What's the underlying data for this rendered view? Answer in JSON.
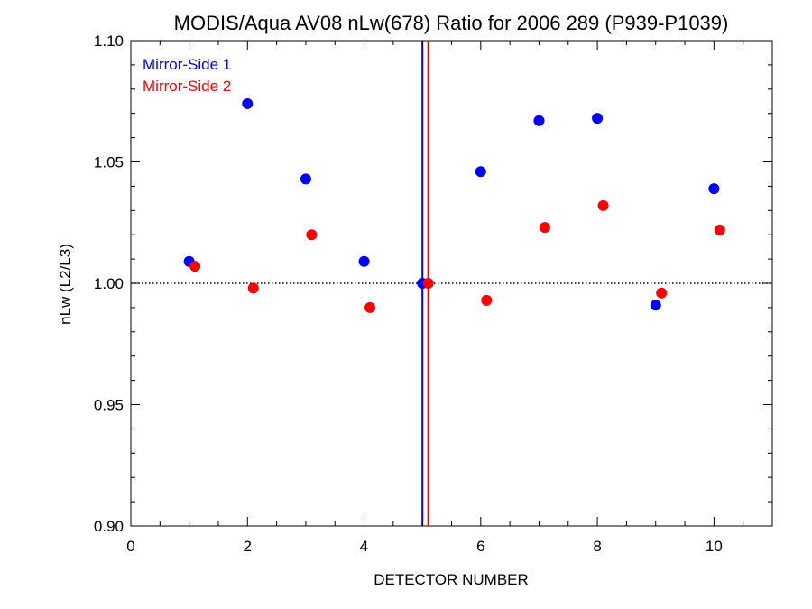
{
  "chart_data": {
    "type": "scatter",
    "title": "MODIS/Aqua AV08 nLw(678) Ratio for 2006 289 (P939-P1039)",
    "xlabel": "DETECTOR NUMBER",
    "ylabel": "nLw (L2/L3)",
    "xlim": [
      0,
      11
    ],
    "ylim": [
      0.9,
      1.1
    ],
    "x_ticks": [
      0,
      2,
      4,
      6,
      8,
      10
    ],
    "x_tick_labels": [
      "0",
      "2",
      "4",
      "6",
      "8",
      "10"
    ],
    "y_ticks": [
      0.9,
      0.95,
      1.0,
      1.05,
      1.1
    ],
    "y_tick_labels": [
      "0.90",
      "0.95",
      "1.00",
      "1.05",
      "1.10"
    ],
    "reference_line": {
      "y": 1.0,
      "style": "dotted",
      "color": "#000000"
    },
    "vertical_lines": [
      {
        "x": 5.0,
        "color": "#0000ff"
      },
      {
        "x": 5.1,
        "color": "#ff0000"
      }
    ],
    "legend_position": "top-left",
    "series": [
      {
        "name": "Mirror-Side 1",
        "color": "#0000ff",
        "x": [
          1,
          2,
          3,
          4,
          5,
          6,
          7,
          8,
          9,
          10
        ],
        "y": [
          1.009,
          1.074,
          1.043,
          1.009,
          1.0,
          1.046,
          1.067,
          1.068,
          0.991,
          1.039
        ]
      },
      {
        "name": "Mirror-Side 2",
        "color": "#ff0000",
        "x": [
          1.1,
          2.1,
          3.1,
          4.1,
          5.1,
          6.1,
          7.1,
          8.1,
          9.1,
          10.1
        ],
        "y": [
          1.007,
          0.998,
          1.02,
          0.99,
          1.0,
          0.993,
          1.023,
          1.032,
          0.996,
          1.022
        ]
      }
    ]
  }
}
